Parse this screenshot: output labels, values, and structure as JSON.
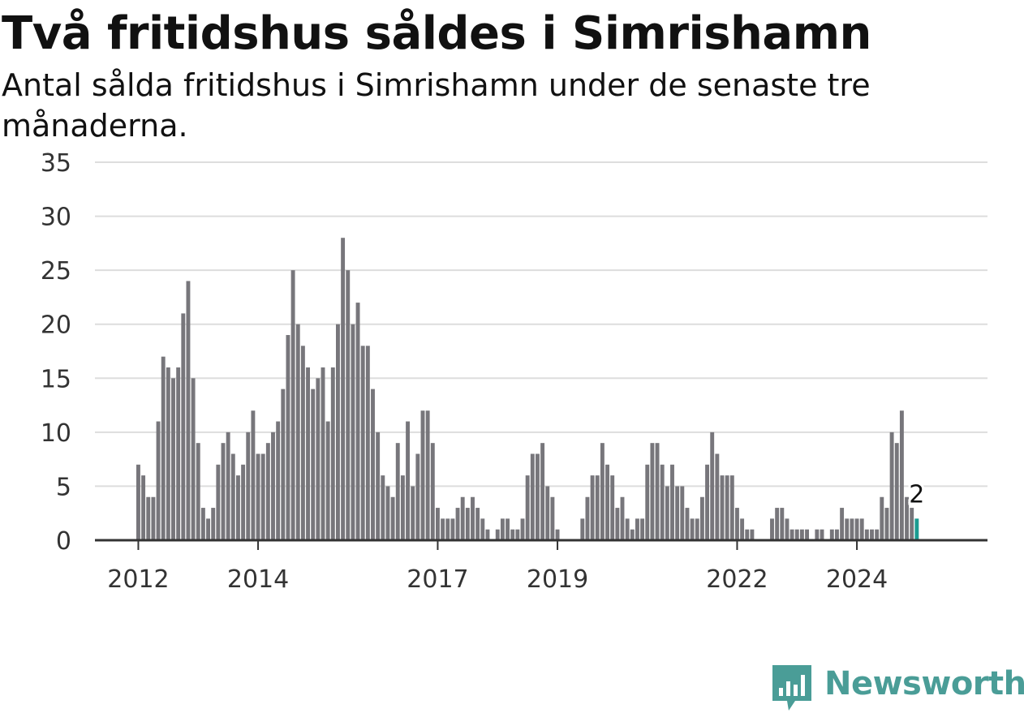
{
  "chart_data": {
    "type": "bar",
    "title": "Två fritidshus såldes i Simrishamn",
    "subtitle": "Antal sålda fritidshus i Simrishamn under de senaste tre månaderna.",
    "xlabel": "",
    "ylabel": "",
    "ylim": [
      0,
      35
    ],
    "yticks": [
      "0",
      "5",
      "10",
      "15",
      "20",
      "25",
      "30",
      "35"
    ],
    "xticks": [
      {
        "label": "2012",
        "year": 2012
      },
      {
        "label": "2014",
        "year": 2014
      },
      {
        "label": "2017",
        "year": 2017
      },
      {
        "label": "2019",
        "year": 2019
      },
      {
        "label": "2022",
        "year": 2022
      },
      {
        "label": "2024",
        "year": 2024
      }
    ],
    "grid": true,
    "first_period": "2012-01",
    "period": "month",
    "values": [
      7,
      6,
      4,
      4,
      11,
      17,
      16,
      15,
      16,
      21,
      24,
      15,
      9,
      3,
      2,
      3,
      7,
      9,
      10,
      8,
      6,
      7,
      10,
      12,
      8,
      8,
      9,
      10,
      11,
      14,
      19,
      25,
      20,
      18,
      16,
      14,
      15,
      16,
      11,
      16,
      20,
      28,
      25,
      20,
      22,
      18,
      18,
      14,
      10,
      6,
      5,
      4,
      9,
      6,
      11,
      5,
      8,
      12,
      12,
      9,
      3,
      2,
      2,
      2,
      3,
      4,
      3,
      4,
      3,
      2,
      1,
      0,
      1,
      2,
      2,
      1,
      1,
      2,
      6,
      8,
      8,
      9,
      5,
      4,
      1,
      0,
      0,
      0,
      0,
      2,
      4,
      6,
      6,
      9,
      7,
      6,
      3,
      4,
      2,
      1,
      2,
      2,
      7,
      9,
      9,
      7,
      5,
      7,
      5,
      5,
      3,
      2,
      2,
      4,
      7,
      10,
      8,
      6,
      6,
      6,
      3,
      2,
      1,
      1,
      0,
      0,
      0,
      2,
      3,
      3,
      2,
      1,
      1,
      1,
      1,
      0,
      1,
      1,
      0,
      1,
      1,
      3,
      2,
      2,
      2,
      2,
      1,
      1,
      1,
      4,
      3,
      10,
      9,
      12,
      4,
      3,
      2
    ],
    "highlight_index": 156,
    "highlight_label": "2",
    "bar_color": "#77767b",
    "highlight_color": "#1a9b91",
    "grid_color": "#dddddd",
    "axis_color": "#333333"
  },
  "logo": {
    "name": "Newsworthy",
    "icon": "bar-chart-speech-bubble-icon",
    "color": "#4a9d97"
  }
}
